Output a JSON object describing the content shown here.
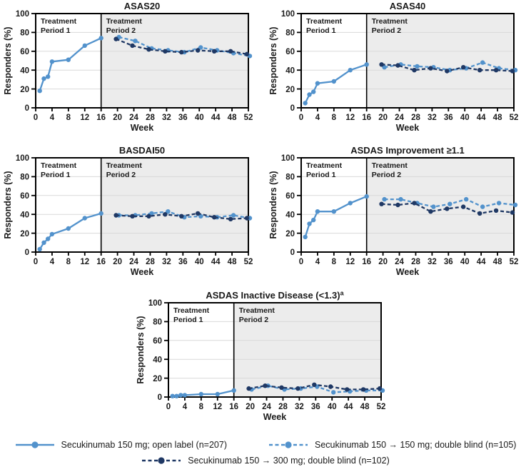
{
  "figure": {
    "y_axis_label": "Responders (%)",
    "x_axis_label": "Week",
    "period1_label": [
      "Treatment",
      "Period 1"
    ],
    "period2_label": [
      "Treatment",
      "Period 2"
    ],
    "colors": {
      "light_blue": "#5292cc",
      "dark_navy": "#1f3864",
      "period2_bg": "#ececec",
      "gridline": "#d9d9d9",
      "frame": "#000000"
    }
  },
  "chart_data": [
    {
      "type": "line",
      "title": "ASAS20",
      "title_sup": "",
      "xlabel": "Week",
      "ylabel": "Responders (%)",
      "ylim": [
        0,
        100
      ],
      "yticks": [
        0,
        20,
        40,
        60,
        80,
        100
      ],
      "xticks": [
        0,
        4,
        8,
        12,
        16,
        20,
        24,
        28,
        32,
        36,
        40,
        44,
        48,
        52
      ],
      "period_divider_week": 16,
      "grid": "horizontal",
      "series": [
        {
          "name": "Secukinumab 150 mg; open label (n=207)",
          "style": "solid",
          "color": "#5292cc",
          "x": [
            1,
            2,
            3,
            4,
            8,
            12,
            16
          ],
          "y": [
            18,
            31,
            33,
            49,
            51,
            66,
            74
          ]
        },
        {
          "name": "Secukinumab 150 → 150 mg; double blind (n=105)",
          "style": "dashed",
          "color": "#5292cc",
          "x": [
            20,
            24,
            28,
            32,
            36,
            40,
            44,
            48,
            52
          ],
          "y": [
            75,
            71,
            63,
            61,
            59,
            64,
            61,
            58,
            55
          ]
        },
        {
          "name": "Secukinumab 150 → 300 mg; double blind (n=102)",
          "style": "dashed",
          "color": "#1f3864",
          "x": [
            20,
            24,
            28,
            32,
            36,
            40,
            44,
            48,
            52
          ],
          "y": [
            73,
            66,
            62,
            60,
            59,
            61,
            60,
            60,
            57
          ]
        }
      ]
    },
    {
      "type": "line",
      "title": "ASAS40",
      "title_sup": "",
      "xlabel": "Week",
      "ylabel": "Responders (%)",
      "ylim": [
        0,
        100
      ],
      "yticks": [
        0,
        20,
        40,
        60,
        80,
        100
      ],
      "xticks": [
        0,
        4,
        8,
        12,
        16,
        20,
        24,
        28,
        32,
        36,
        40,
        44,
        48,
        52
      ],
      "period_divider_week": 16,
      "grid": "horizontal",
      "series": [
        {
          "name": "Secukinumab 150 mg; open label (n=207)",
          "style": "solid",
          "color": "#5292cc",
          "x": [
            1,
            2,
            3,
            4,
            8,
            12,
            16
          ],
          "y": [
            5,
            14,
            17,
            26,
            28,
            40,
            46
          ]
        },
        {
          "name": "Secukinumab 150 → 150 mg; double blind (n=105)",
          "style": "dashed",
          "color": "#5292cc",
          "x": [
            20,
            24,
            28,
            32,
            36,
            40,
            44,
            48,
            52
          ],
          "y": [
            43,
            46,
            44,
            43,
            40,
            42,
            48,
            42,
            40
          ]
        },
        {
          "name": "Secukinumab 150 → 300 mg; double blind (n=102)",
          "style": "dashed",
          "color": "#1f3864",
          "x": [
            20,
            24,
            28,
            32,
            36,
            40,
            44,
            48,
            52
          ],
          "y": [
            46,
            45,
            40,
            42,
            39,
            43,
            40,
            40,
            39
          ]
        }
      ]
    },
    {
      "type": "line",
      "title": "BASDAI50",
      "title_sup": "",
      "xlabel": "Week",
      "ylabel": "Responders (%)",
      "ylim": [
        0,
        100
      ],
      "yticks": [
        0,
        20,
        40,
        60,
        80,
        100
      ],
      "xticks": [
        0,
        4,
        8,
        12,
        16,
        20,
        24,
        28,
        32,
        36,
        40,
        44,
        48,
        52
      ],
      "period_divider_week": 16,
      "grid": "horizontal",
      "series": [
        {
          "name": "Secukinumab 150 mg; open label (n=207)",
          "style": "solid",
          "color": "#5292cc",
          "x": [
            1,
            2,
            3,
            4,
            8,
            12,
            16
          ],
          "y": [
            3,
            10,
            14,
            19,
            25,
            36,
            41
          ]
        },
        {
          "name": "Secukinumab 150 → 150 mg; double blind (n=105)",
          "style": "dashed",
          "color": "#5292cc",
          "x": [
            20,
            24,
            28,
            32,
            36,
            40,
            44,
            48,
            52
          ],
          "y": [
            39,
            39,
            41,
            43,
            37,
            38,
            37,
            39,
            36
          ]
        },
        {
          "name": "Secukinumab 150 → 300 mg; double blind (n=102)",
          "style": "dashed",
          "color": "#1f3864",
          "x": [
            20,
            24,
            28,
            32,
            36,
            40,
            44,
            48,
            52
          ],
          "y": [
            39,
            38,
            38,
            40,
            38,
            41,
            37,
            35,
            36
          ]
        }
      ]
    },
    {
      "type": "line",
      "title": "ASDAS Improvement ≥1.1",
      "title_sup": "",
      "xlabel": "Week",
      "ylabel": "Responders (%)",
      "ylim": [
        0,
        100
      ],
      "yticks": [
        0,
        20,
        40,
        60,
        80,
        100
      ],
      "xticks": [
        0,
        4,
        8,
        12,
        16,
        20,
        24,
        28,
        32,
        36,
        40,
        44,
        48,
        52
      ],
      "period_divider_week": 16,
      "grid": "horizontal",
      "series": [
        {
          "name": "Secukinumab 150 mg; open label (n=207)",
          "style": "solid",
          "color": "#5292cc",
          "x": [
            1,
            2,
            3,
            4,
            8,
            12,
            16
          ],
          "y": [
            16,
            30,
            34,
            43,
            43,
            52,
            59
          ]
        },
        {
          "name": "Secukinumab 150 → 150 mg; double blind (n=105)",
          "style": "dashed",
          "color": "#5292cc",
          "x": [
            20,
            24,
            28,
            32,
            36,
            40,
            44,
            48,
            52
          ],
          "y": [
            56,
            56,
            52,
            48,
            51,
            56,
            48,
            52,
            50
          ]
        },
        {
          "name": "Secukinumab 150 → 300 mg; double blind (n=102)",
          "style": "dashed",
          "color": "#1f3864",
          "x": [
            20,
            24,
            28,
            32,
            36,
            40,
            44,
            48,
            52
          ],
          "y": [
            51,
            50,
            52,
            43,
            46,
            48,
            41,
            44,
            42
          ]
        }
      ]
    },
    {
      "type": "line",
      "title": "ASDAS Inactive Disease (<1.3)",
      "title_sup": "a",
      "xlabel": "Week",
      "ylabel": "Responders (%)",
      "ylim": [
        0,
        100
      ],
      "yticks": [
        0,
        20,
        40,
        60,
        80,
        100
      ],
      "xticks": [
        0,
        4,
        8,
        12,
        16,
        20,
        24,
        28,
        32,
        36,
        40,
        44,
        48,
        52
      ],
      "period_divider_week": 16,
      "grid": "horizontal",
      "series": [
        {
          "name": "Secukinumab 150 mg; open label (n=207)",
          "style": "solid",
          "color": "#5292cc",
          "x": [
            1,
            2,
            3,
            4,
            8,
            12,
            16
          ],
          "y": [
            1,
            1,
            2,
            2,
            3,
            3,
            7
          ]
        },
        {
          "name": "Secukinumab 150 → 150 mg; double blind (n=105)",
          "style": "dashed",
          "color": "#5292cc",
          "x": [
            20,
            24,
            28,
            32,
            36,
            40,
            44,
            48,
            52
          ],
          "y": [
            8,
            12,
            8,
            9,
            11,
            5,
            6,
            7,
            7
          ]
        },
        {
          "name": "Secukinumab 150 → 300 mg; double blind (n=102)",
          "style": "dashed",
          "color": "#1f3864",
          "x": [
            20,
            24,
            28,
            32,
            36,
            40,
            44,
            48,
            52
          ],
          "y": [
            9,
            12,
            10,
            9,
            13,
            11,
            8,
            8,
            9
          ]
        }
      ]
    }
  ],
  "legend": {
    "items": [
      {
        "label": "Secukinumab 150 mg; open label (n=207)",
        "style": "solid",
        "color": "#5292cc"
      },
      {
        "label": "Secukinumab 150 → 150 mg; double blind (n=105)",
        "style": "dashed",
        "color": "#5292cc"
      },
      {
        "label": "Secukinumab 150 → 300 mg; double blind (n=102)",
        "style": "dashed",
        "color": "#1f3864"
      }
    ]
  }
}
